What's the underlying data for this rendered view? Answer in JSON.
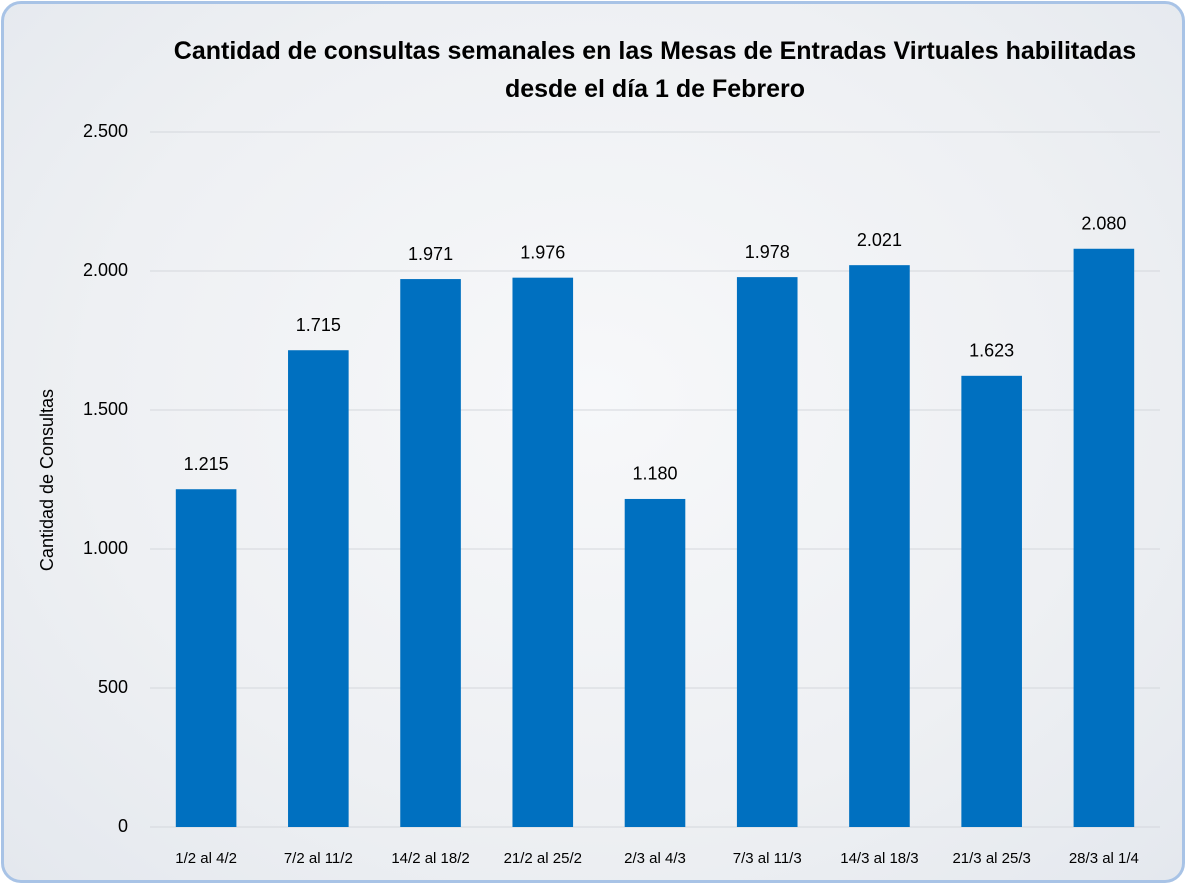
{
  "chart_data": {
    "type": "bar",
    "title": "Cantidad de consultas semanales en las Mesas de Entradas Virtuales habilitadas desde el día 1 de Febrero",
    "y_label": "Cantidad de Consultas",
    "categories": [
      "1/2 al 4/2",
      "7/2 al 11/2",
      "14/2 al 18/2",
      "21/2 al 25/2",
      "2/3 al 4/3",
      "7/3 al 11/3",
      "14/3 al 18/3",
      "21/3 al 25/3",
      "28/3 al 1/4"
    ],
    "values": [
      1215,
      1715,
      1971,
      1976,
      1180,
      1978,
      2021,
      1623,
      2080
    ],
    "value_labels": [
      "1.215",
      "1.715",
      "1.971",
      "1.976",
      "1.180",
      "1.978",
      "2.021",
      "1.623",
      "2.080"
    ],
    "color": "#0070c0",
    "ylim": [
      0,
      2500
    ],
    "yticks": [
      0,
      500,
      {
        "value": 1000,
        "label": "1.000"
      },
      {
        "value": 1500,
        "label": "1.500"
      },
      {
        "value": 2000,
        "label": "2.000"
      },
      {
        "value": 2500,
        "label": "2.500"
      }
    ],
    "grid": true
  }
}
